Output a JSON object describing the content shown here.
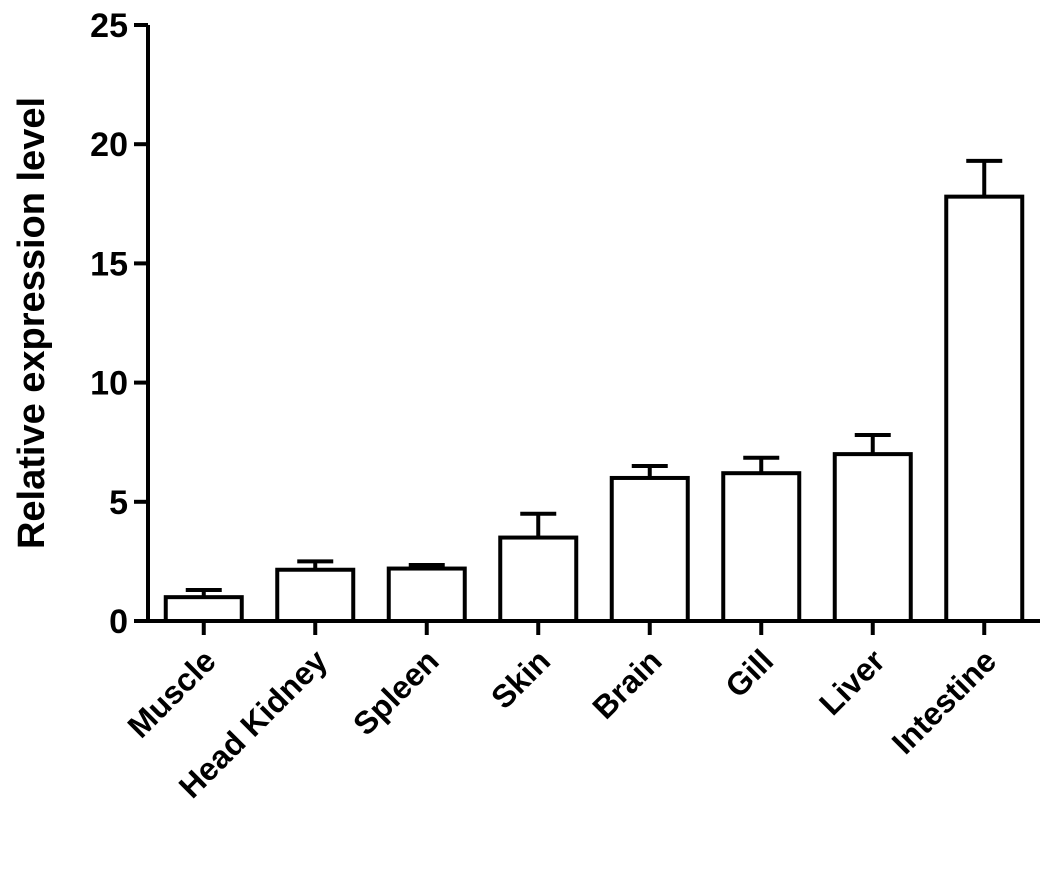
{
  "chart_data": {
    "type": "bar",
    "title": "",
    "xlabel": "",
    "ylabel": "Relative expression level",
    "ylim": [
      0,
      25
    ],
    "yticks": [
      0,
      5,
      10,
      15,
      20,
      25
    ],
    "grid": false,
    "legend": "none",
    "categories": [
      "Muscle",
      "Head Kidney",
      "Spleen",
      "Skin",
      "Brain",
      "Gill",
      "Liver",
      "Intestine"
    ],
    "series": [
      {
        "values": [
          1.0,
          2.15,
          2.2,
          3.5,
          6.0,
          6.2,
          7.0,
          17.8
        ],
        "error": [
          0.3,
          0.35,
          0.15,
          1.0,
          0.5,
          0.65,
          0.8,
          1.5
        ]
      }
    ],
    "colors": {
      "bar_fill": "#ffffff",
      "bar_stroke": "#000000",
      "axis": "#000000"
    }
  }
}
